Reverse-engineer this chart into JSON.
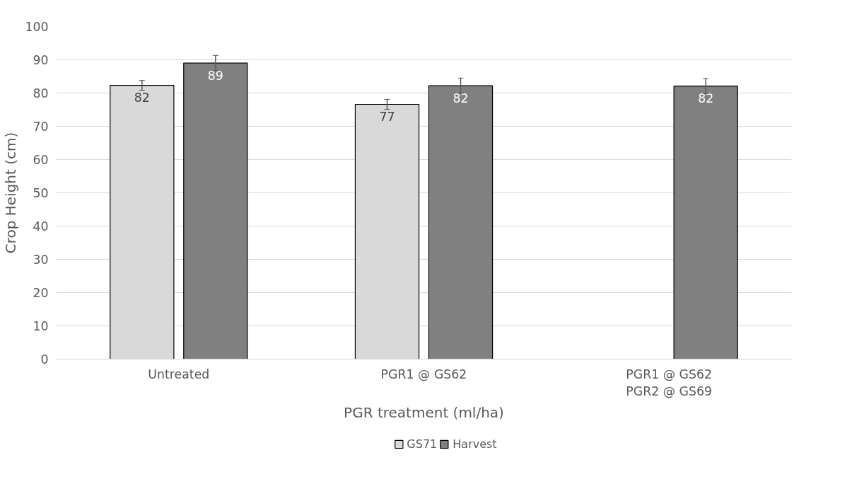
{
  "chart_data": {
    "type": "bar",
    "xlabel": "PGR treatment (ml/ha)",
    "ylabel": "Crop Height (cm)",
    "categories": [
      "Untreated",
      "PGR1 @ GS62",
      "PGR1 @ GS62\nPGR2 @ GS69"
    ],
    "series": [
      {
        "name": "GS71",
        "color": "#d9d9d9",
        "values": [
          82.3,
          76.6,
          null
        ],
        "errors": [
          1.5,
          1.5,
          null
        ],
        "value_labels": [
          "82",
          "77",
          null
        ]
      },
      {
        "name": "Harvest",
        "color": "#808080",
        "values": [
          89.0,
          82.2,
          82.1
        ],
        "errors": [
          2.3,
          2.3,
          2.3
        ],
        "value_labels": [
          "89",
          "82",
          "82"
        ]
      }
    ],
    "ylim": [
      0,
      100
    ],
    "yticks": [
      0,
      10,
      20,
      30,
      40,
      50,
      60,
      70,
      80,
      90,
      100
    ],
    "grid": "y",
    "legend": "bottom"
  }
}
